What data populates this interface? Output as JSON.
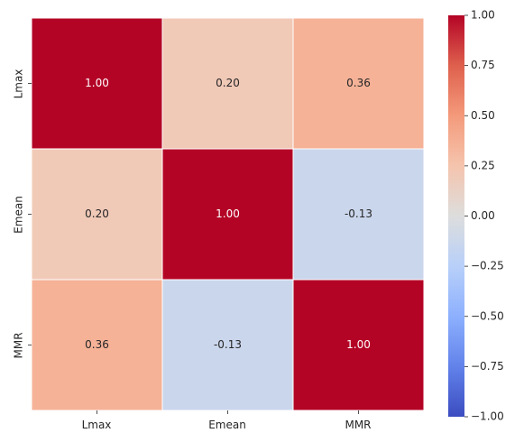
{
  "chart_data": {
    "type": "heatmap",
    "row_labels": [
      "Lmax",
      "Emean",
      "MMR"
    ],
    "col_labels": [
      "Lmax",
      "Emean",
      "MMR"
    ],
    "values": [
      [
        1.0,
        0.2,
        0.36
      ],
      [
        0.2,
        1.0,
        -0.13
      ],
      [
        0.36,
        -0.13,
        1.0
      ]
    ],
    "annotations": [
      [
        "1.00",
        "0.20",
        "0.36"
      ],
      [
        "0.20",
        "1.00",
        "-0.13"
      ],
      [
        "0.36",
        "-0.13",
        "1.00"
      ]
    ],
    "colormap": "coolwarm",
    "vmin": -1.0,
    "vmax": 1.0,
    "colorbar_ticks": [
      "1.00",
      "0.75",
      "0.50",
      "0.25",
      "0.00",
      "−0.25",
      "−0.50",
      "−0.75",
      "−1.00"
    ],
    "colorbar_tick_values": [
      1.0,
      0.75,
      0.5,
      0.25,
      0.0,
      -0.25,
      -0.5,
      -0.75,
      -1.0
    ],
    "colors": {
      "cell_border": "#ffffff",
      "text_light": "#ffffff",
      "text_dark": "#262626"
    }
  }
}
